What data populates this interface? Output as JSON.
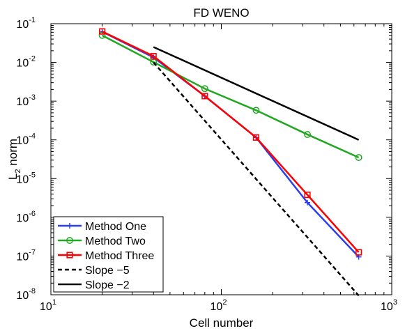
{
  "chart_data": {
    "type": "line",
    "title": "FD WENO",
    "xlabel": "Cell number",
    "ylabel_main": "L",
    "ylabel_sub": "2",
    "ylabel_rest": " norm",
    "xscale": "log",
    "yscale": "log",
    "xlim": [
      10,
      1000
    ],
    "ylim": [
      1e-08,
      0.1
    ],
    "x_ticks": [
      {
        "value": 10,
        "base": "10",
        "exp": "1"
      },
      {
        "value": 100,
        "base": "10",
        "exp": "2"
      },
      {
        "value": 1000,
        "base": "10",
        "exp": "3"
      }
    ],
    "y_ticks": [
      {
        "value": 1e-08,
        "base": "10",
        "exp": "-8"
      },
      {
        "value": 1e-07,
        "base": "10",
        "exp": "-7"
      },
      {
        "value": 1e-06,
        "base": "10",
        "exp": "-6"
      },
      {
        "value": 1e-05,
        "base": "10",
        "exp": "-5"
      },
      {
        "value": 0.0001,
        "base": "10",
        "exp": "-4"
      },
      {
        "value": 0.001,
        "base": "10",
        "exp": "-3"
      },
      {
        "value": 0.01,
        "base": "10",
        "exp": "-2"
      },
      {
        "value": 0.1,
        "base": "10",
        "exp": "-1"
      }
    ],
    "grid": false,
    "legend_position": "bottom-left",
    "series": [
      {
        "name": "Method One",
        "color": "#2a3ef0",
        "marker": "plus",
        "dash": "solid",
        "x": [
          20,
          40,
          80,
          160,
          320,
          640
        ],
        "y": [
          0.062,
          0.0135,
          0.00135,
          0.000115,
          2.4e-06,
          9.5e-08
        ]
      },
      {
        "name": "Method Two",
        "color": "#22a822",
        "marker": "circle",
        "dash": "solid",
        "x": [
          20,
          40,
          80,
          160,
          320,
          640
        ],
        "y": [
          0.05,
          0.0102,
          0.0021,
          0.00058,
          0.000138,
          3.5e-05
        ]
      },
      {
        "name": "Method Three",
        "color": "#ff0000",
        "marker": "square",
        "dash": "solid",
        "x": [
          20,
          40,
          80,
          160,
          320,
          640
        ],
        "y": [
          0.063,
          0.0145,
          0.00135,
          0.000115,
          3.8e-06,
          1.25e-07
        ]
      },
      {
        "name": "Slope −5",
        "color": "#000000",
        "marker": "none",
        "dash": "dashed",
        "x": [
          40,
          640
        ],
        "y": [
          0.01,
          9.5e-09
        ]
      },
      {
        "name": "Slope −2",
        "color": "#000000",
        "marker": "none",
        "dash": "solid",
        "x": [
          40,
          640
        ],
        "y": [
          0.025,
          0.0001
        ]
      }
    ]
  }
}
